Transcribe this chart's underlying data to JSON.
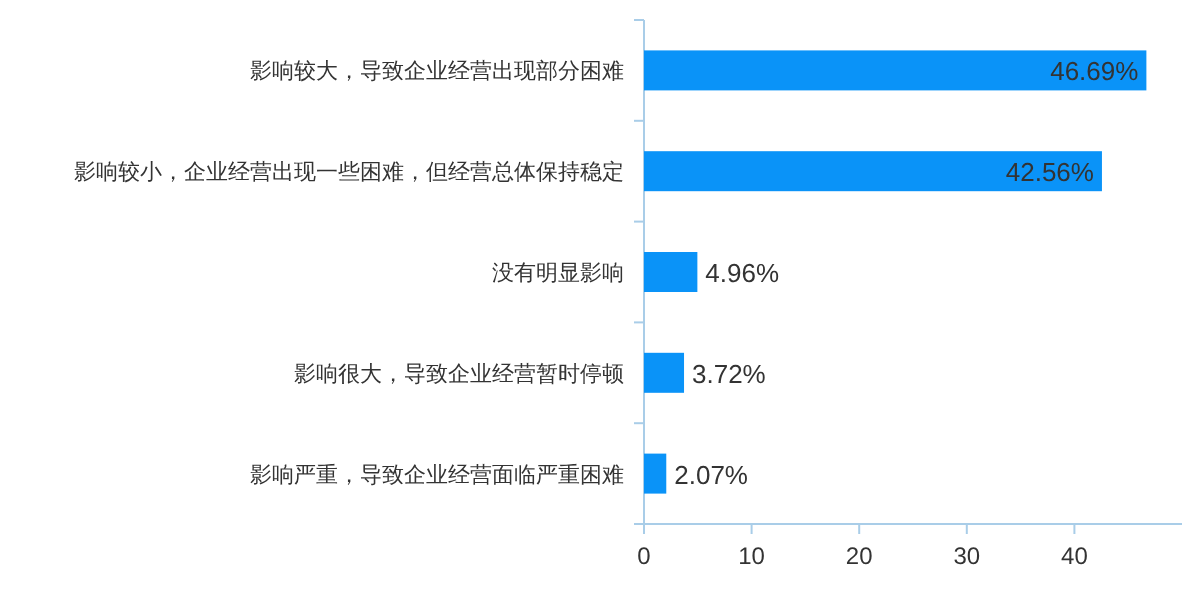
{
  "chart_data": {
    "type": "bar",
    "orientation": "horizontal",
    "categories": [
      "影响较大，导致企业经营出现部分困难",
      "影响较小，企业经营出现一些困难，但经营总体保持稳定",
      "没有明显影响",
      "影响很大，导致企业经营暂时停顿",
      "影响严重，导致企业经营面临严重困难"
    ],
    "values": [
      46.69,
      42.56,
      4.96,
      3.72,
      2.07
    ],
    "value_labels": [
      "46.69%",
      "42.56%",
      "4.96%",
      "3.72%",
      "2.07%"
    ],
    "color": "#0a93f8",
    "xlim": [
      0,
      50
    ],
    "xticks": [
      0,
      10,
      20,
      30,
      40
    ],
    "grid": false
  }
}
